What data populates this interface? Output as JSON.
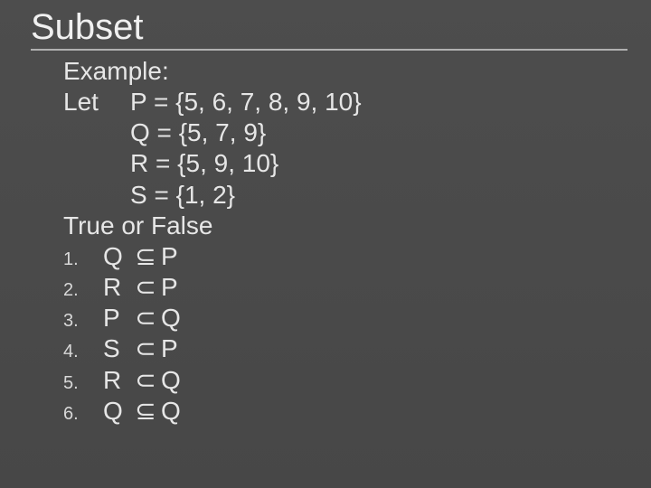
{
  "slide": {
    "title": "Subset",
    "background_color": "#4a4a4a",
    "text_color": "#e8e8e8",
    "title_fontsize": 40,
    "body_fontsize": 28,
    "list_number_fontsize": 20,
    "rule_color": "#b0b0b0",
    "example_label": "Example:",
    "let_label": "Let",
    "definitions": [
      {
        "name": "P",
        "value": "{5, 6, 7, 8, 9, 10}"
      },
      {
        "name": "Q",
        "value": "{5, 7, 9}"
      },
      {
        "name": "R",
        "value": "{5, 9, 10}"
      },
      {
        "name": "S",
        "value": "{1, 2}"
      }
    ],
    "tf_label": "True or False",
    "statements": [
      {
        "n": "1.",
        "left": "Q",
        "op": "⊆",
        "right": "P"
      },
      {
        "n": "2.",
        "left": "R",
        "op": "⊂",
        "right": "P"
      },
      {
        "n": "3.",
        "left": "P",
        "op": "⊂",
        "right": "Q"
      },
      {
        "n": "4.",
        "left": "S",
        "op": "⊂",
        "right": "P"
      },
      {
        "n": "5.",
        "left": "R",
        "op": "⊂",
        "right": "Q"
      },
      {
        "n": "6.",
        "left": "Q",
        "op": "⊆",
        "right": "Q"
      }
    ]
  }
}
